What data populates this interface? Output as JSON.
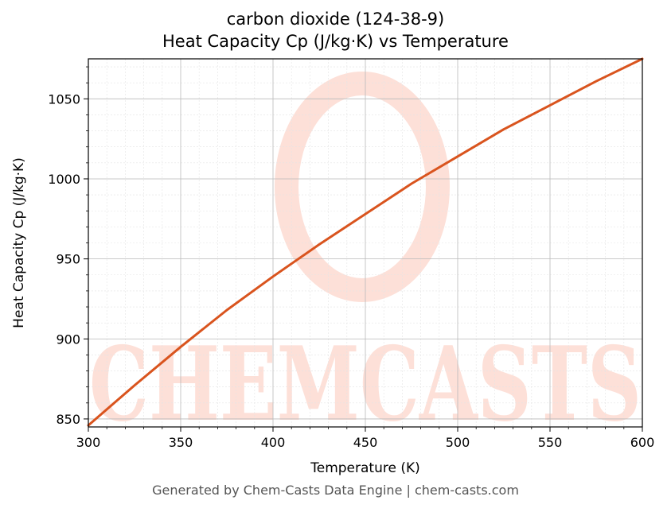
{
  "chart_data": {
    "type": "line",
    "title": "carbon dioxide (124-38-9)",
    "subtitle": "Heat Capacity Cp (J/kg·K) vs Temperature",
    "xlabel": "Temperature (K)",
    "ylabel": "Heat Capacity Cp (J/kg·K)",
    "xlim": [
      300,
      600
    ],
    "ylim": [
      845,
      1075
    ],
    "xticks": [
      300,
      350,
      400,
      450,
      500,
      550,
      600
    ],
    "yticks": [
      850,
      900,
      950,
      1000,
      1050
    ],
    "grid": true,
    "series": [
      {
        "color": "#d9541e",
        "x": [
          300,
          325,
          350,
          375,
          400,
          425,
          450,
          475,
          500,
          525,
          550,
          575,
          600
        ],
        "y": [
          846,
          871,
          895,
          918,
          939,
          959,
          978,
          997,
          1014,
          1031,
          1046,
          1061,
          1075
        ]
      }
    ]
  },
  "watermark": {
    "text": "CHEMCASTS",
    "color": "#fde0d8"
  },
  "footer": "Generated by Chem-Casts Data Engine | chem-casts.com"
}
